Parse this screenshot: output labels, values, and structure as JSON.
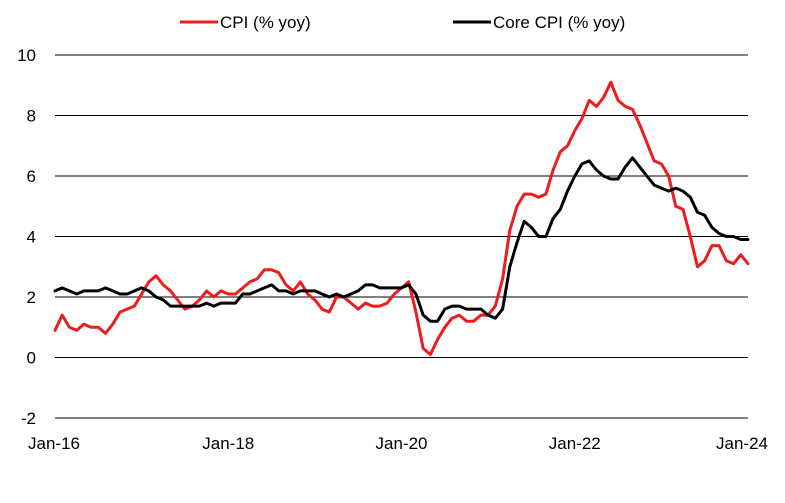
{
  "chart_data": {
    "type": "line",
    "title": "",
    "xlabel": "",
    "ylabel": "",
    "ylim": [
      -2,
      10
    ],
    "yticks": [
      "-2",
      "0",
      "2",
      "4",
      "6",
      "8",
      "10"
    ],
    "xticks": [
      {
        "label": "Jan-16",
        "date": "2016-01"
      },
      {
        "label": "Jan-18",
        "date": "2018-01"
      },
      {
        "label": "Jan-20",
        "date": "2020-01"
      },
      {
        "label": "Jan-22",
        "date": "2022-01"
      },
      {
        "label": "Jan-24",
        "date": "2024-01"
      }
    ],
    "grid": "horizontal",
    "legend_position": "top",
    "start_month": "2016-01",
    "series": [
      {
        "name": "CPI (% yoy)",
        "color": "#ee1c1c",
        "values": [
          0.9,
          1.4,
          1.0,
          0.9,
          1.1,
          1.0,
          1.0,
          0.8,
          1.1,
          1.5,
          1.6,
          1.7,
          2.1,
          2.5,
          2.7,
          2.4,
          2.2,
          1.9,
          1.6,
          1.7,
          1.9,
          2.2,
          2.0,
          2.2,
          2.1,
          2.1,
          2.3,
          2.5,
          2.6,
          2.9,
          2.9,
          2.8,
          2.4,
          2.2,
          2.5,
          2.1,
          1.9,
          1.6,
          1.5,
          2.0,
          2.0,
          1.8,
          1.6,
          1.8,
          1.7,
          1.7,
          1.8,
          2.1,
          2.3,
          2.5,
          1.5,
          0.3,
          0.1,
          0.6,
          1.0,
          1.3,
          1.4,
          1.2,
          1.2,
          1.4,
          1.4,
          1.7,
          2.6,
          4.2,
          5.0,
          5.4,
          5.4,
          5.3,
          5.4,
          6.2,
          6.8,
          7.0,
          7.5,
          7.9,
          8.5,
          8.3,
          8.6,
          9.1,
          8.5,
          8.3,
          8.2,
          7.7,
          7.1,
          6.5,
          6.4,
          6.0,
          5.0,
          4.9,
          4.0,
          3.0,
          3.2,
          3.7,
          3.7,
          3.2,
          3.1,
          3.4,
          3.1
        ]
      },
      {
        "name": "Core CPI (% yoy)",
        "color": "#000000",
        "values": [
          2.2,
          2.3,
          2.2,
          2.1,
          2.2,
          2.2,
          2.2,
          2.3,
          2.2,
          2.1,
          2.1,
          2.2,
          2.3,
          2.2,
          2.0,
          1.9,
          1.7,
          1.7,
          1.7,
          1.7,
          1.7,
          1.8,
          1.7,
          1.8,
          1.8,
          1.8,
          2.1,
          2.1,
          2.2,
          2.3,
          2.4,
          2.2,
          2.2,
          2.1,
          2.2,
          2.2,
          2.2,
          2.1,
          2.0,
          2.1,
          2.0,
          2.1,
          2.2,
          2.4,
          2.4,
          2.3,
          2.3,
          2.3,
          2.3,
          2.4,
          2.1,
          1.4,
          1.2,
          1.2,
          1.6,
          1.7,
          1.7,
          1.6,
          1.6,
          1.6,
          1.4,
          1.3,
          1.6,
          3.0,
          3.8,
          4.5,
          4.3,
          4.0,
          4.0,
          4.6,
          4.9,
          5.5,
          6.0,
          6.4,
          6.5,
          6.2,
          6.0,
          5.9,
          5.9,
          6.3,
          6.6,
          6.3,
          6.0,
          5.7,
          5.6,
          5.5,
          5.6,
          5.5,
          5.3,
          4.8,
          4.7,
          4.3,
          4.1,
          4.0,
          4.0,
          3.9,
          3.9
        ]
      }
    ]
  }
}
